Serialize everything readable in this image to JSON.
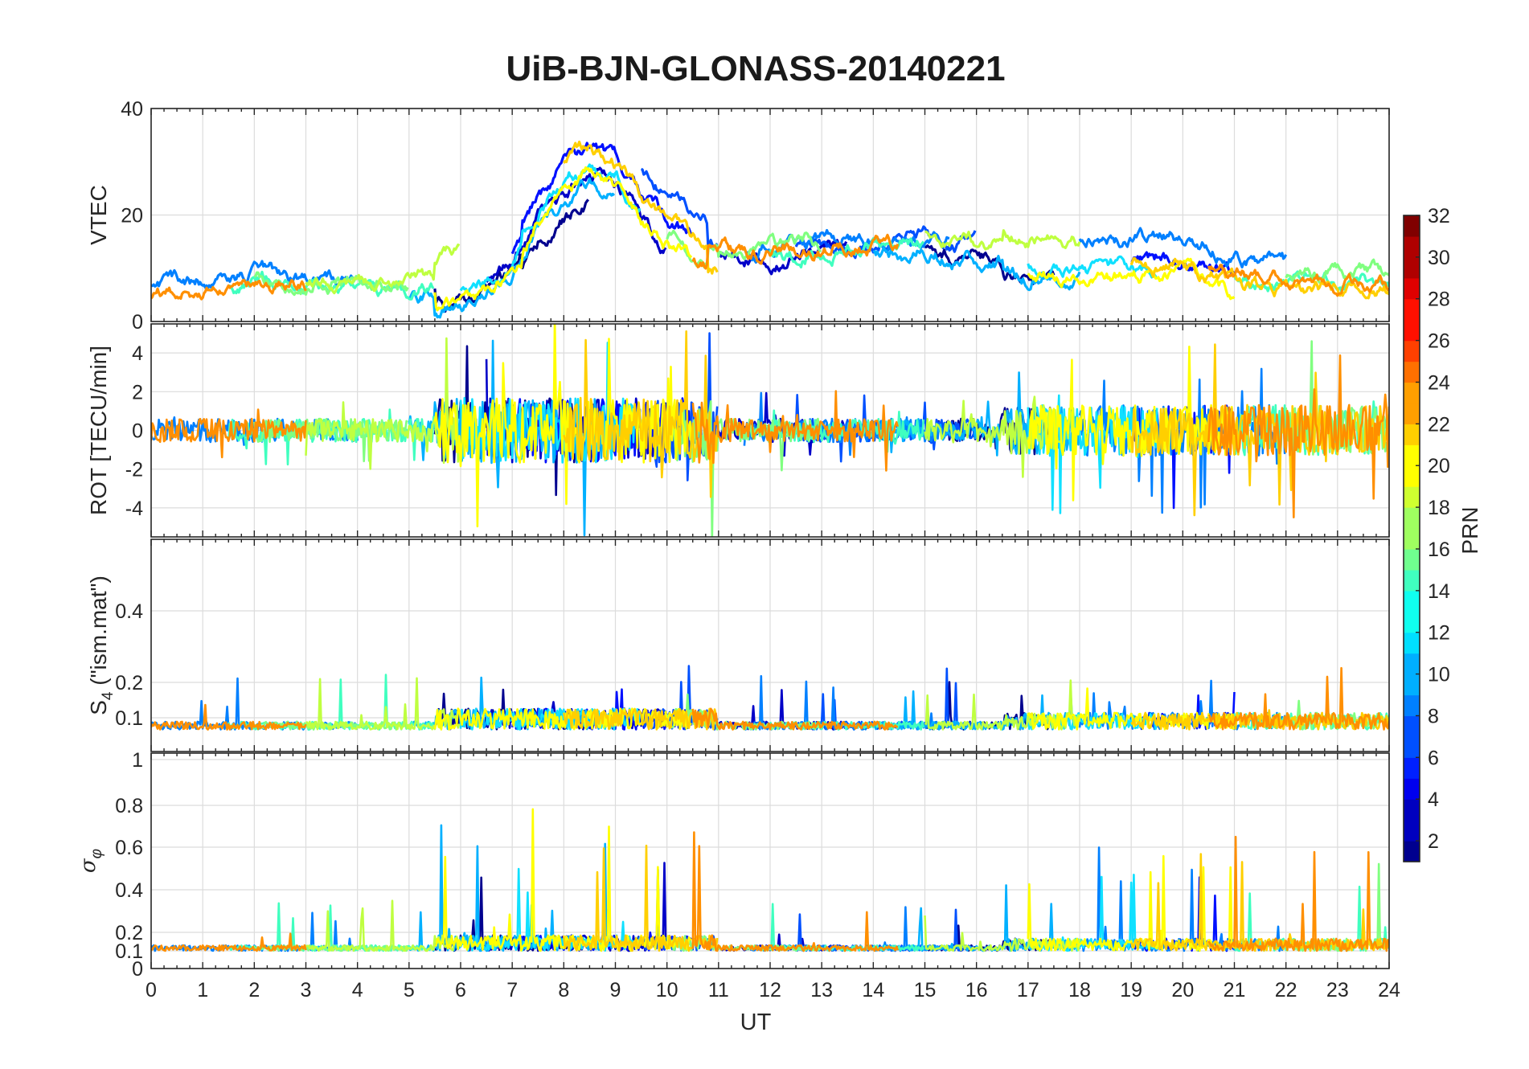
{
  "chart_data": {
    "type": "line",
    "title": "UiB-BJN-GLONASS-20140221",
    "xlabel": "UT",
    "x_range": [
      0,
      24
    ],
    "x_ticks": [
      "0",
      "1",
      "2",
      "3",
      "4",
      "5",
      "6",
      "7",
      "8",
      "9",
      "10",
      "11",
      "12",
      "13",
      "14",
      "15",
      "16",
      "17",
      "18",
      "19",
      "20",
      "21",
      "22",
      "23",
      "24"
    ],
    "panels": [
      {
        "id": "vtec",
        "ylabel": "VTEC",
        "ylim": [
          0,
          40
        ],
        "y_ticks": [
          "0",
          "20",
          "40"
        ],
        "y_tick_values": [
          0,
          20,
          40
        ],
        "baseline": [
          [
            0,
            5
          ],
          [
            1,
            6
          ],
          [
            2,
            7.5
          ],
          [
            3,
            6.5
          ],
          [
            4,
            6
          ],
          [
            5,
            6
          ],
          [
            5.5,
            7
          ],
          [
            6,
            8
          ],
          [
            6.5,
            10
          ],
          [
            7,
            13
          ],
          [
            7.5,
            22
          ],
          [
            8,
            27
          ],
          [
            8.5,
            30
          ],
          [
            9,
            28
          ],
          [
            9.5,
            22
          ],
          [
            10,
            17
          ],
          [
            10.5,
            14
          ],
          [
            11,
            13
          ],
          [
            12,
            13
          ],
          [
            13,
            14
          ],
          [
            14,
            14
          ],
          [
            15,
            15
          ],
          [
            16,
            13.5
          ],
          [
            17,
            12
          ],
          [
            18,
            11.5
          ],
          [
            19,
            12
          ],
          [
            20,
            12
          ],
          [
            21,
            9
          ],
          [
            22,
            7
          ],
          [
            23,
            7
          ],
          [
            24,
            7
          ]
        ],
        "spread": 6
      },
      {
        "id": "rot",
        "ylabel": "ROT [TECU/min]",
        "ylim": [
          -5.5,
          5.5
        ],
        "y_ticks": [
          "-4",
          "-2",
          "0",
          "2",
          "4"
        ],
        "y_tick_values": [
          -4,
          -2,
          0,
          2,
          4
        ],
        "baseline": [
          [
            0,
            0
          ],
          [
            24,
            0
          ]
        ],
        "spread": 1.2
      },
      {
        "id": "s4",
        "ylabel_main": "S",
        "ylabel_sub": "4",
        "ylabel_rest": " (\"ism.mat\")",
        "ylim": [
          0.02,
          0.6
        ],
        "y_ticks": [
          "0.1",
          "0.2",
          "0.4"
        ],
        "y_tick_values": [
          0.1,
          0.2,
          0.4
        ],
        "baseline": [
          [
            0,
            0.07
          ],
          [
            24,
            0.07
          ]
        ],
        "spread": 0.04
      },
      {
        "id": "sigma",
        "ylabel_main": "σ",
        "ylabel_sub": "φ",
        "ylim": [
          0,
          1
        ],
        "y_ticks": [
          "0",
          "0.1",
          "0.2",
          "0.4",
          "0.6",
          "0.8",
          "1"
        ],
        "y_tick_values": [
          0,
          0.1,
          0.2,
          0.4,
          0.6,
          0.8,
          1
        ],
        "baseline": [
          [
            0,
            0.1
          ],
          [
            24,
            0.1
          ]
        ],
        "spread": 0.06
      }
    ],
    "series": [
      {
        "prn": "1",
        "color": "#00008f",
        "coverage": [
          [
            5.5,
            8.5
          ],
          [
            15,
            17.5
          ]
        ]
      },
      {
        "prn": "2",
        "color": "#0000c8",
        "coverage": [
          [
            6.5,
            10
          ],
          [
            11,
            13.5
          ]
        ]
      },
      {
        "prn": "4",
        "color": "#0010ff",
        "coverage": [
          [
            7,
            10.5
          ],
          [
            19,
            21
          ]
        ]
      },
      {
        "prn": "6",
        "color": "#0050ff",
        "coverage": [
          [
            9.5,
            11
          ],
          [
            12.5,
            16
          ]
        ]
      },
      {
        "prn": "8",
        "color": "#0080ff",
        "coverage": [
          [
            0,
            4
          ],
          [
            11.5,
            15.5
          ],
          [
            18,
            22
          ]
        ]
      },
      {
        "prn": "10",
        "color": "#00b0ff",
        "coverage": [
          [
            5,
            9
          ],
          [
            14,
            18
          ]
        ]
      },
      {
        "prn": "12",
        "color": "#10e0ff",
        "coverage": [
          [
            6,
            9.5
          ],
          [
            17,
            19.5
          ]
        ]
      },
      {
        "prn": "14",
        "color": "#40ffbf",
        "coverage": [
          [
            1.5,
            5.5
          ],
          [
            12,
            15
          ],
          [
            21,
            24
          ]
        ]
      },
      {
        "prn": "16",
        "color": "#80ff80",
        "coverage": [
          [
            2,
            5
          ],
          [
            10,
            13
          ],
          [
            22,
            24
          ]
        ]
      },
      {
        "prn": "18",
        "color": "#bfff40",
        "coverage": [
          [
            3,
            6
          ],
          [
            15,
            18
          ]
        ]
      },
      {
        "prn": "20",
        "color": "#ffff00",
        "coverage": [
          [
            5.5,
            10.5
          ],
          [
            17,
            21
          ]
        ]
      },
      {
        "prn": "22",
        "color": "#ffcf00",
        "coverage": [
          [
            8,
            11
          ],
          [
            19,
            24
          ]
        ]
      },
      {
        "prn": "24",
        "color": "#ff8f00",
        "coverage": [
          [
            0,
            3
          ],
          [
            10.5,
            14.5
          ],
          [
            20.5,
            24
          ]
        ]
      }
    ],
    "colorbar": {
      "label": "PRN",
      "range": [
        1,
        32
      ],
      "ticks": [
        "2",
        "4",
        "6",
        "8",
        "10",
        "12",
        "14",
        "16",
        "18",
        "20",
        "22",
        "24",
        "26",
        "28",
        "30",
        "32"
      ],
      "tick_values": [
        2,
        4,
        6,
        8,
        10,
        12,
        14,
        16,
        18,
        20,
        22,
        24,
        26,
        28,
        30,
        32
      ]
    }
  }
}
